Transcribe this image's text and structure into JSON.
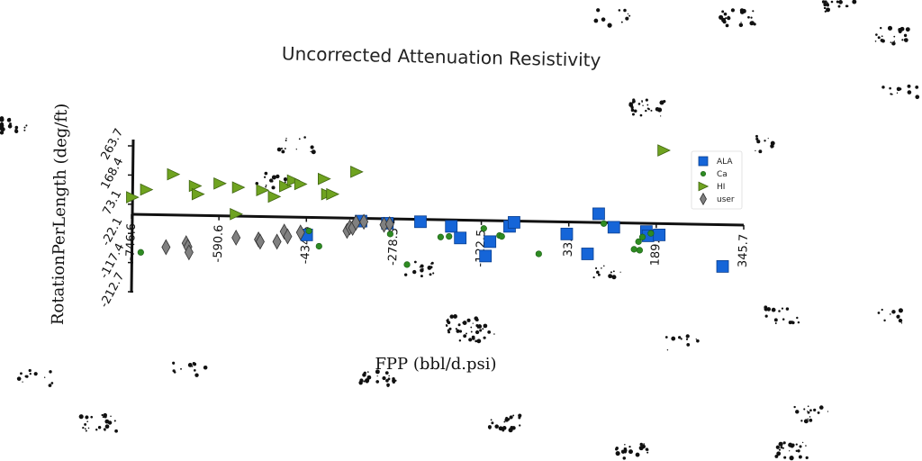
{
  "chart_data": {
    "type": "scatter",
    "title": "Uncorrected Attenuation Resistivity",
    "xlabel": "FPP (bbl/d.psi)",
    "ylabel": "RotationPerLength (deg/ft)",
    "x_ticks": [
      "-746.6",
      "-590.6",
      "-434.6",
      "-278.5",
      "-122.5",
      "33.6",
      "189.6",
      "345.7"
    ],
    "y_ticks": [
      "263.7",
      "168.4",
      "73.1",
      "-22.1",
      "-117.4",
      "-212.7"
    ],
    "xlim": [
      -746.6,
      345.7
    ],
    "ylim": [
      -212.7,
      263.7
    ],
    "legend_position": "top-right",
    "series": [
      {
        "name": "ALA",
        "marker": "square",
        "color": "#1565d8",
        "points": [
          {
            "x": -434,
            "y": -33
          },
          {
            "x": -337,
            "y": 12
          },
          {
            "x": -290,
            "y": 5
          },
          {
            "x": -231,
            "y": 10
          },
          {
            "x": -176,
            "y": -5
          },
          {
            "x": -160,
            "y": -43
          },
          {
            "x": -115,
            "y": -102
          },
          {
            "x": -107,
            "y": -55
          },
          {
            "x": -72,
            "y": -5
          },
          {
            "x": -64,
            "y": 8
          },
          {
            "x": 30,
            "y": -30
          },
          {
            "x": 67,
            "y": -95
          },
          {
            "x": 87,
            "y": 36
          },
          {
            "x": 114,
            "y": -8
          },
          {
            "x": 172,
            "y": -22
          },
          {
            "x": 175,
            "y": -36
          },
          {
            "x": 195,
            "y": -33
          },
          {
            "x": 308,
            "y": -136
          }
        ]
      },
      {
        "name": "Ca",
        "marker": "circle",
        "color": "#2e8b22",
        "points": [
          {
            "x": -730,
            "y": -90
          },
          {
            "x": -430,
            "y": -20
          },
          {
            "x": -412,
            "y": -70
          },
          {
            "x": -285,
            "y": -30
          },
          {
            "x": -255,
            "y": -130
          },
          {
            "x": -195,
            "y": -40
          },
          {
            "x": -180,
            "y": -38
          },
          {
            "x": -118,
            "y": -12
          },
          {
            "x": -90,
            "y": -35
          },
          {
            "x": -86,
            "y": -38
          },
          {
            "x": -20,
            "y": -95
          },
          {
            "x": 96,
            "y": 4
          },
          {
            "x": 150,
            "y": -80
          },
          {
            "x": 158,
            "y": -55
          },
          {
            "x": 160,
            "y": -83
          },
          {
            "x": 165,
            "y": -40
          },
          {
            "x": 180,
            "y": -28
          }
        ]
      },
      {
        "name": "HI",
        "marker": "triangle-right",
        "color": "#6fa320",
        "points": [
          {
            "x": -745,
            "y": 90
          },
          {
            "x": -720,
            "y": 115
          },
          {
            "x": -672,
            "y": 165
          },
          {
            "x": -633,
            "y": 127
          },
          {
            "x": -628,
            "y": 100
          },
          {
            "x": -589,
            "y": 135
          },
          {
            "x": -560,
            "y": 35
          },
          {
            "x": -556,
            "y": 122
          },
          {
            "x": -513,
            "y": 113
          },
          {
            "x": -492,
            "y": 92
          },
          {
            "x": -472,
            "y": 126
          },
          {
            "x": -458,
            "y": 145
          },
          {
            "x": -445,
            "y": 133
          },
          {
            "x": -403,
            "y": 150
          },
          {
            "x": -397,
            "y": 100
          },
          {
            "x": -388,
            "y": 100
          },
          {
            "x": -345,
            "y": 173
          },
          {
            "x": 203,
            "y": 243
          }
        ]
      },
      {
        "name": "user",
        "marker": "diamond",
        "color": "#808080",
        "points": [
          {
            "x": -685,
            "y": -73
          },
          {
            "x": -649,
            "y": -60
          },
          {
            "x": -646,
            "y": -72
          },
          {
            "x": -644,
            "y": -90
          },
          {
            "x": -560,
            "y": -42
          },
          {
            "x": -520,
            "y": -48
          },
          {
            "x": -517,
            "y": -55
          },
          {
            "x": -487,
            "y": -55
          },
          {
            "x": -474,
            "y": -22
          },
          {
            "x": -468,
            "y": -38
          },
          {
            "x": -445,
            "y": -25
          },
          {
            "x": -362,
            "y": -20
          },
          {
            "x": -357,
            "y": -8
          },
          {
            "x": -352,
            "y": -10
          },
          {
            "x": -346,
            "y": 7
          },
          {
            "x": -332,
            "y": 10
          },
          {
            "x": -296,
            "y": 0
          },
          {
            "x": -286,
            "y": 2
          }
        ]
      }
    ]
  }
}
